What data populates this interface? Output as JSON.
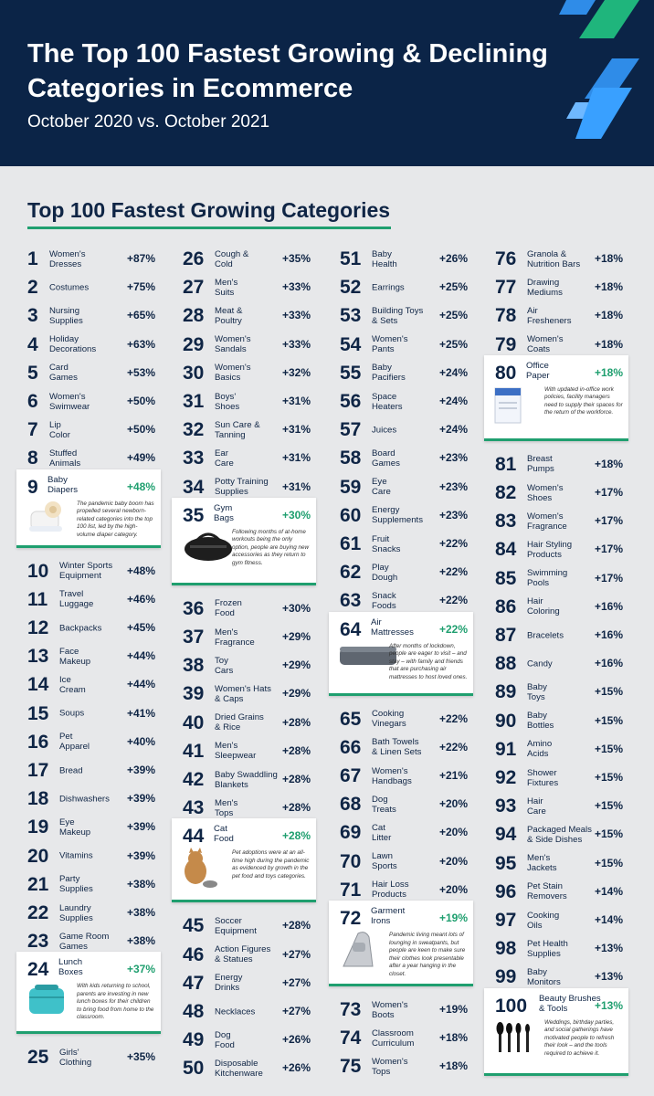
{
  "header": {
    "title": "The Top 100 Fastest Growing & Declining Categories in Ecommerce",
    "subtitle": "October 2020 vs. October 2021"
  },
  "section": {
    "title": "Top 100 Fastest Growing Categories"
  },
  "columns": [
    {
      "items": [
        {
          "rank": "1",
          "name": "Women's\nDresses",
          "pct": "+87%"
        },
        {
          "rank": "2",
          "name": "Costumes",
          "pct": "+75%"
        },
        {
          "rank": "3",
          "name": "Nursing\nSupplies",
          "pct": "+65%"
        },
        {
          "rank": "4",
          "name": "Holiday\nDecorations",
          "pct": "+63%"
        },
        {
          "rank": "5",
          "name": "Card\nGames",
          "pct": "+53%"
        },
        {
          "rank": "6",
          "name": "Women's\nSwimwear",
          "pct": "+50%"
        },
        {
          "rank": "7",
          "name": "Lip\nColor",
          "pct": "+50%"
        },
        {
          "rank": "8",
          "name": "Stuffed\nAnimals",
          "pct": "+49%"
        },
        {
          "rank": "9",
          "name": "Baby\nDiapers",
          "pct": "+48%",
          "desc": "The pandemic baby boom has propelled several newborn-related categories into the top 100 list, led by the high-volume diaper category.",
          "icon": "diapers-image"
        },
        {
          "rank": "10",
          "name": "Winter Sports\nEquipment",
          "pct": "+48%"
        },
        {
          "rank": "11",
          "name": "Travel\nLuggage",
          "pct": "+46%"
        },
        {
          "rank": "12",
          "name": "Backpacks",
          "pct": "+45%"
        },
        {
          "rank": "13",
          "name": "Face\nMakeup",
          "pct": "+44%"
        },
        {
          "rank": "14",
          "name": "Ice\nCream",
          "pct": "+44%"
        },
        {
          "rank": "15",
          "name": "Soups",
          "pct": "+41%"
        },
        {
          "rank": "16",
          "name": "Pet\nApparel",
          "pct": "+40%"
        },
        {
          "rank": "17",
          "name": "Bread",
          "pct": "+39%"
        },
        {
          "rank": "18",
          "name": "Dishwashers",
          "pct": "+39%"
        },
        {
          "rank": "19",
          "name": "Eye\nMakeup",
          "pct": "+39%"
        },
        {
          "rank": "20",
          "name": "Vitamins",
          "pct": "+39%"
        },
        {
          "rank": "21",
          "name": "Party\nSupplies",
          "pct": "+38%"
        },
        {
          "rank": "22",
          "name": "Laundry\nSupplies",
          "pct": "+38%"
        },
        {
          "rank": "23",
          "name": "Game Room\nGames",
          "pct": "+38%"
        },
        {
          "rank": "24",
          "name": "Lunch\nBoxes",
          "pct": "+37%",
          "desc": "With kids returning to school, parents are investing in new lunch boxes for their children to bring food from home to the classroom.",
          "icon": "lunchbox-image"
        },
        {
          "rank": "25",
          "name": "Girls'\nClothing",
          "pct": "+35%"
        }
      ]
    },
    {
      "items": [
        {
          "rank": "26",
          "name": "Cough &\nCold",
          "pct": "+35%"
        },
        {
          "rank": "27",
          "name": "Men's\nSuits",
          "pct": "+33%"
        },
        {
          "rank": "28",
          "name": "Meat &\nPoultry",
          "pct": "+33%"
        },
        {
          "rank": "29",
          "name": "Women's\nSandals",
          "pct": "+33%"
        },
        {
          "rank": "30",
          "name": "Women's\nBasics",
          "pct": "+32%"
        },
        {
          "rank": "31",
          "name": "Boys'\nShoes",
          "pct": "+31%"
        },
        {
          "rank": "32",
          "name": "Sun Care &\nTanning",
          "pct": "+31%"
        },
        {
          "rank": "33",
          "name": "Ear\nCare",
          "pct": "+31%"
        },
        {
          "rank": "34",
          "name": "Potty Training\nSupplies",
          "pct": "+31%"
        },
        {
          "rank": "35",
          "name": "Gym\nBags",
          "pct": "+30%",
          "desc": "Following months of at-home workouts being the only option, people are buying new accessories as they return to gym fitness.",
          "icon": "gym-bag-image"
        },
        {
          "rank": "36",
          "name": "Frozen\nFood",
          "pct": "+30%"
        },
        {
          "rank": "37",
          "name": "Men's\nFragrance",
          "pct": "+29%"
        },
        {
          "rank": "38",
          "name": "Toy\nCars",
          "pct": "+29%"
        },
        {
          "rank": "39",
          "name": "Women's Hats\n& Caps",
          "pct": "+29%"
        },
        {
          "rank": "40",
          "name": "Dried Grains\n& Rice",
          "pct": "+28%"
        },
        {
          "rank": "41",
          "name": "Men's\nSleepwear",
          "pct": "+28%"
        },
        {
          "rank": "42",
          "name": "Baby Swaddling\nBlankets",
          "pct": "+28%"
        },
        {
          "rank": "43",
          "name": "Men's\nTops",
          "pct": "+28%"
        },
        {
          "rank": "44",
          "name": "Cat\nFood",
          "pct": "+28%",
          "desc": "Pet adoptions were at an all-time high during the pandemic as evidenced by growth in the pet food and toys categories.",
          "icon": "cat-food-image"
        },
        {
          "rank": "45",
          "name": "Soccer\nEquipment",
          "pct": "+28%"
        },
        {
          "rank": "46",
          "name": "Action Figures\n& Statues",
          "pct": "+27%"
        },
        {
          "rank": "47",
          "name": "Energy\nDrinks",
          "pct": "+27%"
        },
        {
          "rank": "48",
          "name": "Necklaces",
          "pct": "+27%"
        },
        {
          "rank": "49",
          "name": "Dog\nFood",
          "pct": "+26%"
        },
        {
          "rank": "50",
          "name": "Disposable\nKitchenware",
          "pct": "+26%"
        }
      ]
    },
    {
      "items": [
        {
          "rank": "51",
          "name": "Baby\nHealth",
          "pct": "+26%"
        },
        {
          "rank": "52",
          "name": "Earrings",
          "pct": "+25%"
        },
        {
          "rank": "53",
          "name": "Building Toys\n& Sets",
          "pct": "+25%"
        },
        {
          "rank": "54",
          "name": "Women's\nPants",
          "pct": "+25%"
        },
        {
          "rank": "55",
          "name": "Baby\nPacifiers",
          "pct": "+24%"
        },
        {
          "rank": "56",
          "name": "Space\nHeaters",
          "pct": "+24%"
        },
        {
          "rank": "57",
          "name": "Juices",
          "pct": "+24%"
        },
        {
          "rank": "58",
          "name": "Board\nGames",
          "pct": "+23%"
        },
        {
          "rank": "59",
          "name": "Eye\nCare",
          "pct": "+23%"
        },
        {
          "rank": "60",
          "name": "Energy\nSupplements",
          "pct": "+23%"
        },
        {
          "rank": "61",
          "name": "Fruit\nSnacks",
          "pct": "+22%"
        },
        {
          "rank": "62",
          "name": "Play\nDough",
          "pct": "+22%"
        },
        {
          "rank": "63",
          "name": "Snack\nFoods",
          "pct": "+22%"
        },
        {
          "rank": "64",
          "name": "Air\nMattresses",
          "pct": "+22%",
          "desc": "After months of lockdown, people are eager to visit – and stay – with family and friends that are purchasing air mattresses to host loved ones.",
          "icon": "air-mattress-image"
        },
        {
          "rank": "65",
          "name": "Cooking\nVinegars",
          "pct": "+22%"
        },
        {
          "rank": "66",
          "name": "Bath Towels\n& Linen Sets",
          "pct": "+22%"
        },
        {
          "rank": "67",
          "name": "Women's\nHandbags",
          "pct": "+21%"
        },
        {
          "rank": "68",
          "name": "Dog\nTreats",
          "pct": "+20%"
        },
        {
          "rank": "69",
          "name": "Cat\nLitter",
          "pct": "+20%"
        },
        {
          "rank": "70",
          "name": "Lawn\nSports",
          "pct": "+20%"
        },
        {
          "rank": "71",
          "name": "Hair Loss\nProducts",
          "pct": "+20%"
        },
        {
          "rank": "72",
          "name": "Garment\nIrons",
          "pct": "+19%",
          "desc": "Pandemic living meant lots of lounging in sweatpants, but people are keen to make sure their clothes look presentable after a year hanging in the closet.",
          "icon": "iron-image"
        },
        {
          "rank": "73",
          "name": "Women's\nBoots",
          "pct": "+19%"
        },
        {
          "rank": "74",
          "name": "Classroom\nCurriculum",
          "pct": "+18%"
        },
        {
          "rank": "75",
          "name": "Women's\nTops",
          "pct": "+18%"
        }
      ]
    },
    {
      "items": [
        {
          "rank": "76",
          "name": "Granola &\nNutrition Bars",
          "pct": "+18%"
        },
        {
          "rank": "77",
          "name": "Drawing\nMediums",
          "pct": "+18%"
        },
        {
          "rank": "78",
          "name": "Air\nFresheners",
          "pct": "+18%"
        },
        {
          "rank": "79",
          "name": "Women's\nCoats",
          "pct": "+18%"
        },
        {
          "rank": "80",
          "name": "Office\nPaper",
          "pct": "+18%",
          "desc": "With updated in-office work policies, facility managers need to supply their spaces for the return of the workforce.",
          "icon": "office-paper-image"
        },
        {
          "rank": "81",
          "name": "Breast\nPumps",
          "pct": "+18%"
        },
        {
          "rank": "82",
          "name": "Women's\nShoes",
          "pct": "+17%"
        },
        {
          "rank": "83",
          "name": "Women's\nFragrance",
          "pct": "+17%"
        },
        {
          "rank": "84",
          "name": "Hair Styling\nProducts",
          "pct": "+17%"
        },
        {
          "rank": "85",
          "name": "Swimming\nPools",
          "pct": "+17%"
        },
        {
          "rank": "86",
          "name": "Hair\nColoring",
          "pct": "+16%"
        },
        {
          "rank": "87",
          "name": "Bracelets",
          "pct": "+16%"
        },
        {
          "rank": "88",
          "name": "Candy",
          "pct": "+16%"
        },
        {
          "rank": "89",
          "name": "Baby\nToys",
          "pct": "+15%"
        },
        {
          "rank": "90",
          "name": "Baby\nBottles",
          "pct": "+15%"
        },
        {
          "rank": "91",
          "name": "Amino\nAcids",
          "pct": "+15%"
        },
        {
          "rank": "92",
          "name": "Shower\nFixtures",
          "pct": "+15%"
        },
        {
          "rank": "93",
          "name": "Hair\nCare",
          "pct": "+15%"
        },
        {
          "rank": "94",
          "name": "Packaged Meals\n& Side Dishes",
          "pct": "+15%"
        },
        {
          "rank": "95",
          "name": "Men's\nJackets",
          "pct": "+15%"
        },
        {
          "rank": "96",
          "name": "Pet Stain\nRemovers",
          "pct": "+14%"
        },
        {
          "rank": "97",
          "name": "Cooking\nOils",
          "pct": "+14%"
        },
        {
          "rank": "98",
          "name": "Pet Health\nSupplies",
          "pct": "+13%"
        },
        {
          "rank": "99",
          "name": "Baby\nMonitors",
          "pct": "+13%"
        },
        {
          "rank": "100",
          "name": "Beauty Brushes\n& Tools",
          "pct": "+13%",
          "desc": "Weddings, birthday parties, and social gatherings have motivated people to refresh their look – and the tools required to achieve it.",
          "icon": "makeup-brushes-image"
        }
      ]
    }
  ],
  "colors": {
    "header_bg": "#0b2447",
    "accent": "#1f9f6f",
    "ink": "#0f2545",
    "page_bg": "#e7e8ea"
  }
}
